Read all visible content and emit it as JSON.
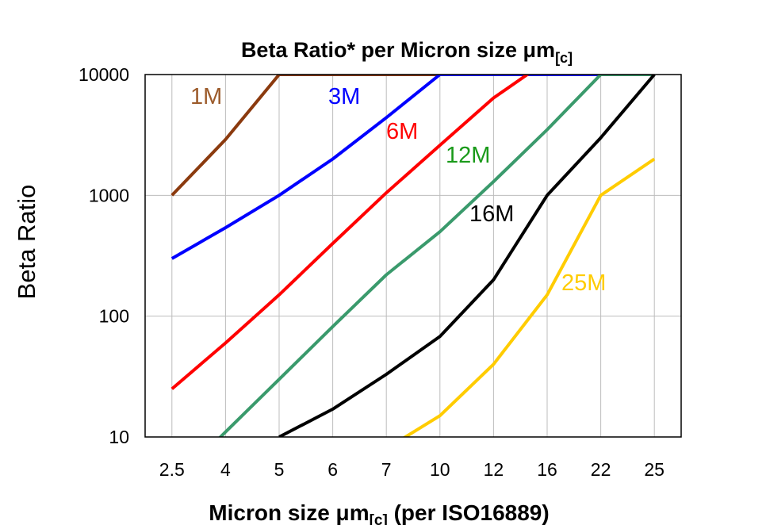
{
  "chart_data": {
    "type": "line",
    "title": {
      "main": "Beta Ratio* per Micron size μm",
      "sub": "[c]"
    },
    "xlabel": {
      "main": "Micron size μm",
      "sub": "[c]",
      "rest": " (per ISO16889)"
    },
    "ylabel": "Beta Ratio",
    "yscale": "log",
    "ylim": [
      10,
      10000
    ],
    "yticks": [
      "10",
      "100",
      "1000",
      "10000"
    ],
    "grid": true,
    "legend": "inline labels",
    "categories": [
      "2.5",
      "4",
      "5",
      "6",
      "7",
      "10",
      "12",
      "16",
      "22",
      "25"
    ],
    "series": [
      {
        "name": "1M",
        "color": "#8B3A0E",
        "label_color": "#9C5B2B",
        "values": [
          1000,
          2900,
          10000,
          10000,
          10000,
          10000,
          10000,
          10000,
          10000,
          10000
        ]
      },
      {
        "name": "3M",
        "color": "#0000FF",
        "label_color": "#0000FF",
        "values": [
          300,
          540,
          1000,
          2000,
          4400,
          10000,
          10000,
          10000,
          10000,
          10000
        ]
      },
      {
        "name": "6M",
        "color": "#FF0000",
        "label_color": "#FF0000",
        "values": [
          25,
          60,
          150,
          400,
          1050,
          2600,
          6400,
          13000,
          null,
          null
        ]
      },
      {
        "name": "12M",
        "color": "#3A9A6C",
        "label_color": "#1A9A1A",
        "values": [
          4,
          11,
          30,
          82,
          220,
          500,
          1300,
          3500,
          10000,
          10000
        ]
      },
      {
        "name": "16M",
        "color": "#000000",
        "label_color": "#000000",
        "values": [
          null,
          null,
          10,
          17,
          33,
          68,
          200,
          1000,
          3000,
          10000
        ]
      },
      {
        "name": "25M",
        "color": "#FFCC00",
        "label_color": "#FFCC00",
        "values": [
          null,
          null,
          null,
          null,
          8,
          15,
          40,
          150,
          1000,
          2000
        ]
      }
    ]
  }
}
